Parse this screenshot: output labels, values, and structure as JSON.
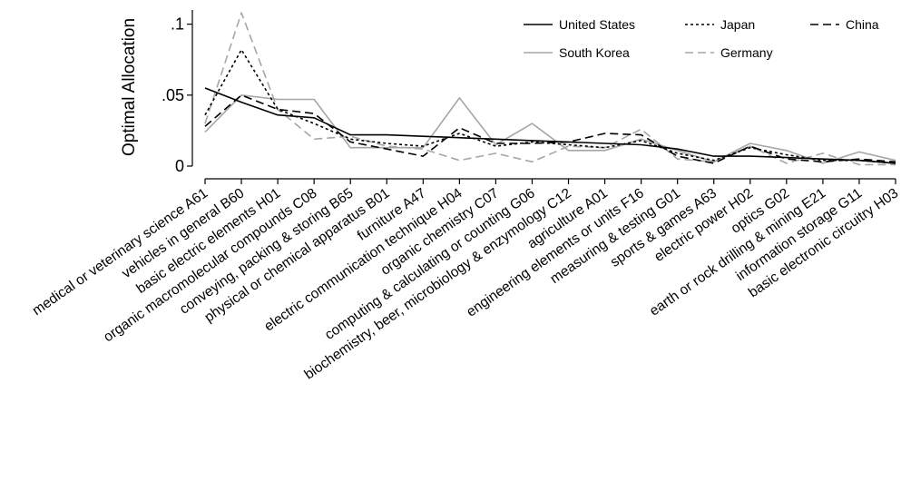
{
  "chart_data": {
    "type": "line",
    "title": "",
    "xlabel": "",
    "ylabel": "Optimal Allocation",
    "ylim": [
      0,
      0.11
    ],
    "yticks": [
      {
        "value": 0,
        "label": "0"
      },
      {
        "value": 0.05,
        "label": ".05"
      },
      {
        "value": 0.1,
        "label": ".1"
      }
    ],
    "grid": false,
    "legend_position": "top-right",
    "categories": [
      "medical or veterinary science A61",
      "vehicles in general B60",
      "basic electric elements H01",
      "organic macromolecular compounds C08",
      "conveying, packing & storing B65",
      "physical or chemical apparatus B01",
      "furniture A47",
      "electric communication technique H04",
      "organic chemistry C07",
      "computing & calculating or counting G06",
      "biochemistry, beer, microbiology & enzymology C12",
      "agriculture A01",
      "engineering elements or units F16",
      "measuring & testing G01",
      "sports & games A63",
      "electric power H02",
      "optics G02",
      "earth or rock drilling & mining E21",
      "information storage G11",
      "basic electronic circuitry H03"
    ],
    "series": [
      {
        "name": "United States",
        "color": "#000000",
        "dash": "solid",
        "values": [
          0.055,
          0.045,
          0.036,
          0.034,
          0.022,
          0.022,
          0.021,
          0.02,
          0.019,
          0.018,
          0.017,
          0.016,
          0.015,
          0.012,
          0.007,
          0.007,
          0.006,
          0.005,
          0.004,
          0.002
        ]
      },
      {
        "name": "South Korea",
        "color": "#a6a6a6",
        "dash": "solid",
        "values": [
          0.024,
          0.05,
          0.047,
          0.047,
          0.013,
          0.013,
          0.013,
          0.048,
          0.015,
          0.03,
          0.011,
          0.011,
          0.019,
          0.011,
          0.003,
          0.016,
          0.011,
          0.002,
          0.01,
          0.004
        ]
      },
      {
        "name": "Japan",
        "color": "#000000",
        "dash": "dotted",
        "values": [
          0.036,
          0.082,
          0.04,
          0.03,
          0.019,
          0.016,
          0.014,
          0.023,
          0.014,
          0.017,
          0.015,
          0.013,
          0.018,
          0.009,
          0.004,
          0.013,
          0.008,
          0.004,
          0.004,
          0.002
        ]
      },
      {
        "name": "Germany",
        "color": "#a6a6a6",
        "dash": "dashed",
        "values": [
          0.03,
          0.108,
          0.04,
          0.019,
          0.021,
          0.014,
          0.012,
          0.004,
          0.009,
          0.003,
          0.014,
          0.013,
          0.026,
          0.005,
          0.003,
          0.014,
          0.002,
          0.009,
          0.001,
          0.001
        ]
      },
      {
        "name": "China",
        "color": "#000000",
        "dash": "dashed",
        "values": [
          0.028,
          0.05,
          0.04,
          0.037,
          0.017,
          0.012,
          0.007,
          0.027,
          0.016,
          0.016,
          0.017,
          0.023,
          0.022,
          0.007,
          0.002,
          0.014,
          0.005,
          0.003,
          0.005,
          0.003
        ]
      }
    ]
  }
}
